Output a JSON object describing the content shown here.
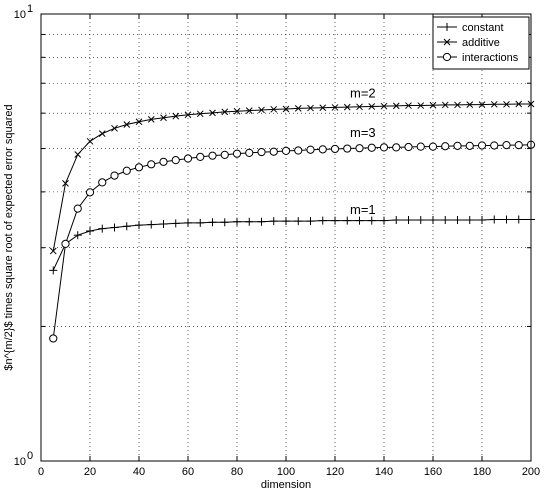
{
  "chart_data": {
    "type": "line",
    "xlabel": "dimension",
    "ylabel": "$n^{m/2}$ times square root of expected error squared",
    "xlim": [
      0,
      200
    ],
    "ylim": [
      1,
      10
    ],
    "yscale": "log",
    "grid": true,
    "legend_position": "top-right",
    "x_ticks": [
      0,
      20,
      40,
      60,
      80,
      100,
      120,
      140,
      160,
      180,
      200
    ],
    "y_ticks": [
      {
        "value": 1,
        "base": "10",
        "exp": "0"
      },
      {
        "value": 10,
        "base": "10",
        "exp": "1"
      }
    ],
    "series": [
      {
        "name": "constant",
        "marker": "plus",
        "x": [
          5,
          10,
          15,
          20,
          25,
          30,
          35,
          40,
          45,
          50,
          55,
          60,
          65,
          70,
          75,
          80,
          85,
          90,
          95,
          100,
          105,
          110,
          115,
          120,
          125,
          130,
          135,
          140,
          145,
          150,
          155,
          160,
          165,
          170,
          175,
          180,
          185,
          190,
          195,
          200
        ],
        "y": [
          2.67,
          3.06,
          3.2,
          3.27,
          3.31,
          3.33,
          3.35,
          3.37,
          3.38,
          3.39,
          3.4,
          3.41,
          3.41,
          3.42,
          3.42,
          3.43,
          3.43,
          3.43,
          3.44,
          3.44,
          3.44,
          3.44,
          3.45,
          3.45,
          3.45,
          3.45,
          3.45,
          3.45,
          3.46,
          3.46,
          3.46,
          3.46,
          3.46,
          3.46,
          3.46,
          3.46,
          3.47,
          3.47,
          3.47,
          3.47
        ]
      },
      {
        "name": "additive",
        "marker": "x",
        "x": [
          5,
          10,
          15,
          20,
          25,
          30,
          35,
          40,
          45,
          50,
          55,
          60,
          65,
          70,
          75,
          80,
          85,
          90,
          95,
          100,
          105,
          110,
          115,
          120,
          125,
          130,
          135,
          140,
          145,
          150,
          155,
          160,
          165,
          170,
          175,
          180,
          185,
          190,
          195,
          200
        ],
        "y": [
          2.95,
          4.18,
          4.85,
          5.19,
          5.4,
          5.55,
          5.66,
          5.74,
          5.81,
          5.86,
          5.91,
          5.95,
          5.98,
          6.01,
          6.04,
          6.06,
          6.08,
          6.1,
          6.12,
          6.13,
          6.15,
          6.16,
          6.17,
          6.18,
          6.19,
          6.2,
          6.21,
          6.22,
          6.23,
          6.24,
          6.24,
          6.25,
          6.26,
          6.26,
          6.27,
          6.27,
          6.28,
          6.28,
          6.29,
          6.29
        ]
      },
      {
        "name": "interactions",
        "marker": "circle",
        "x": [
          5,
          10,
          15,
          20,
          25,
          30,
          35,
          40,
          45,
          50,
          55,
          60,
          65,
          70,
          75,
          80,
          85,
          90,
          95,
          100,
          105,
          110,
          115,
          120,
          125,
          130,
          135,
          140,
          145,
          150,
          155,
          160,
          165,
          170,
          175,
          180,
          185,
          190,
          195,
          200
        ],
        "y": [
          1.88,
          3.06,
          3.67,
          3.99,
          4.2,
          4.35,
          4.46,
          4.54,
          4.61,
          4.67,
          4.71,
          4.75,
          4.79,
          4.82,
          4.84,
          4.87,
          4.89,
          4.91,
          4.92,
          4.94,
          4.95,
          4.97,
          4.98,
          4.99,
          5.0,
          5.01,
          5.02,
          5.03,
          5.03,
          5.04,
          5.05,
          5.05,
          5.06,
          5.07,
          5.07,
          5.08,
          5.08,
          5.09,
          5.09,
          5.1
        ]
      }
    ],
    "annotations": [
      {
        "text": "m=2",
        "x": 120,
        "y": 6.5
      },
      {
        "text": "m=3",
        "x": 120,
        "y": 5.3
      },
      {
        "text": "m=1",
        "x": 120,
        "y": 3.57
      }
    ]
  }
}
